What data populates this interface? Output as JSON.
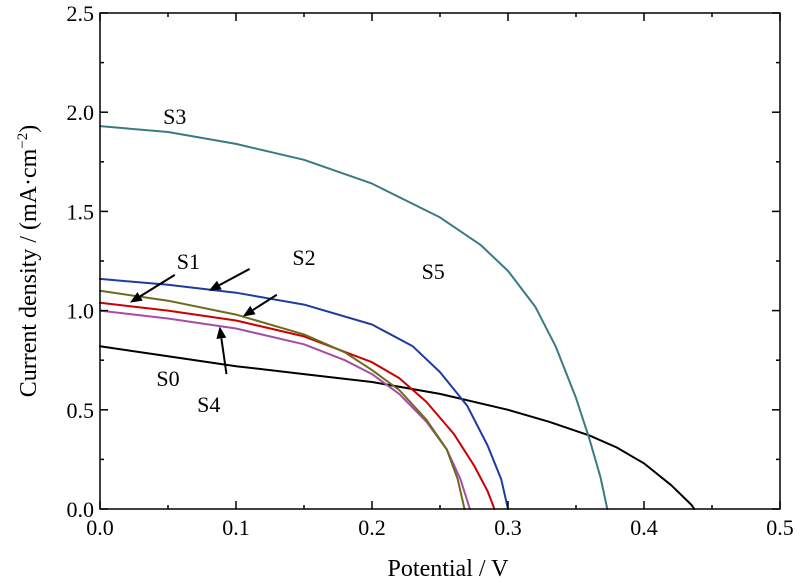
{
  "chart_data": {
    "type": "line",
    "title": "",
    "xlabel": "Potential / V",
    "ylabel": "Current density / (mA·cm",
    "ylabel_superscript": "−2",
    "ylabel_tail": ")",
    "xlim": [
      0.0,
      0.5
    ],
    "ylim": [
      0.0,
      2.5
    ],
    "x_ticks": [
      0.0,
      0.1,
      0.2,
      0.3,
      0.4,
      0.5
    ],
    "x_tick_labels": [
      "0.0",
      "0.1",
      "0.2",
      "0.3",
      "0.4",
      "0.5"
    ],
    "y_ticks": [
      0.0,
      0.5,
      1.0,
      1.5,
      2.0,
      2.5
    ],
    "y_tick_labels": [
      "0.0",
      "0.5",
      "1.0",
      "1.5",
      "2.0",
      "2.5"
    ],
    "grid": false,
    "legend": "none",
    "series": [
      {
        "name": "S0",
        "color": "#000000",
        "points": [
          [
            0.0,
            0.82
          ],
          [
            0.05,
            0.77
          ],
          [
            0.1,
            0.72
          ],
          [
            0.15,
            0.68
          ],
          [
            0.2,
            0.64
          ],
          [
            0.25,
            0.58
          ],
          [
            0.3,
            0.5
          ],
          [
            0.33,
            0.44
          ],
          [
            0.36,
            0.37
          ],
          [
            0.38,
            0.31
          ],
          [
            0.4,
            0.23
          ],
          [
            0.42,
            0.12
          ],
          [
            0.435,
            0.02
          ],
          [
            0.437,
            0.0
          ]
        ]
      },
      {
        "name": "S1",
        "color": "#cc0000",
        "points": [
          [
            0.0,
            1.04
          ],
          [
            0.05,
            1.0
          ],
          [
            0.1,
            0.95
          ],
          [
            0.15,
            0.87
          ],
          [
            0.2,
            0.74
          ],
          [
            0.22,
            0.66
          ],
          [
            0.24,
            0.54
          ],
          [
            0.26,
            0.38
          ],
          [
            0.275,
            0.22
          ],
          [
            0.285,
            0.09
          ],
          [
            0.29,
            0.0
          ]
        ]
      },
      {
        "name": "S2",
        "color": "#1f3b9e",
        "points": [
          [
            0.0,
            1.16
          ],
          [
            0.05,
            1.13
          ],
          [
            0.1,
            1.09
          ],
          [
            0.15,
            1.03
          ],
          [
            0.2,
            0.93
          ],
          [
            0.23,
            0.82
          ],
          [
            0.25,
            0.69
          ],
          [
            0.27,
            0.52
          ],
          [
            0.285,
            0.32
          ],
          [
            0.295,
            0.15
          ],
          [
            0.3,
            0.0
          ]
        ]
      },
      {
        "name": "S3",
        "color": "#3a7a84",
        "points": [
          [
            0.0,
            1.93
          ],
          [
            0.05,
            1.9
          ],
          [
            0.1,
            1.84
          ],
          [
            0.15,
            1.76
          ],
          [
            0.2,
            1.64
          ],
          [
            0.25,
            1.47
          ],
          [
            0.28,
            1.33
          ],
          [
            0.3,
            1.2
          ],
          [
            0.32,
            1.02
          ],
          [
            0.335,
            0.82
          ],
          [
            0.35,
            0.56
          ],
          [
            0.36,
            0.35
          ],
          [
            0.368,
            0.16
          ],
          [
            0.373,
            0.0
          ]
        ]
      },
      {
        "name": "S4",
        "color": "#a64ca6",
        "points": [
          [
            0.0,
            1.0
          ],
          [
            0.05,
            0.96
          ],
          [
            0.1,
            0.91
          ],
          [
            0.15,
            0.83
          ],
          [
            0.18,
            0.75
          ],
          [
            0.2,
            0.68
          ],
          [
            0.22,
            0.58
          ],
          [
            0.24,
            0.44
          ],
          [
            0.255,
            0.3
          ],
          [
            0.265,
            0.15
          ],
          [
            0.272,
            0.0
          ]
        ]
      },
      {
        "name": "S5",
        "color": "#6b6b1a",
        "points": [
          [
            0.0,
            1.1
          ],
          [
            0.05,
            1.05
          ],
          [
            0.1,
            0.98
          ],
          [
            0.15,
            0.88
          ],
          [
            0.18,
            0.79
          ],
          [
            0.2,
            0.7
          ],
          [
            0.22,
            0.6
          ],
          [
            0.24,
            0.45
          ],
          [
            0.255,
            0.3
          ],
          [
            0.263,
            0.15
          ],
          [
            0.268,
            0.0
          ]
        ]
      }
    ],
    "annotations": [
      {
        "text": "S3",
        "label_at": [
          0.055,
          1.98
        ],
        "arrow_from": null,
        "arrow_to": null
      },
      {
        "text": "S0",
        "label_at": [
          0.05,
          0.66
        ],
        "arrow_from": null,
        "arrow_to": null
      },
      {
        "text": "S1",
        "label_at": [
          0.065,
          1.25
        ],
        "arrow_from": [
          0.055,
          1.18
        ],
        "arrow_to": [
          0.022,
          1.04
        ]
      },
      {
        "text": "S2",
        "label_at": [
          0.15,
          1.27
        ],
        "arrow_from": [
          0.11,
          1.21
        ],
        "arrow_to": [
          0.08,
          1.1
        ]
      },
      {
        "text": "S5",
        "label_at": [
          0.245,
          1.2
        ],
        "arrow_from": [
          0.13,
          1.08
        ],
        "arrow_to": [
          0.105,
          0.97
        ]
      },
      {
        "text": "S4",
        "label_at": [
          0.08,
          0.53
        ],
        "arrow_from": [
          0.093,
          0.68
        ],
        "arrow_to": [
          0.088,
          0.92
        ]
      }
    ]
  }
}
